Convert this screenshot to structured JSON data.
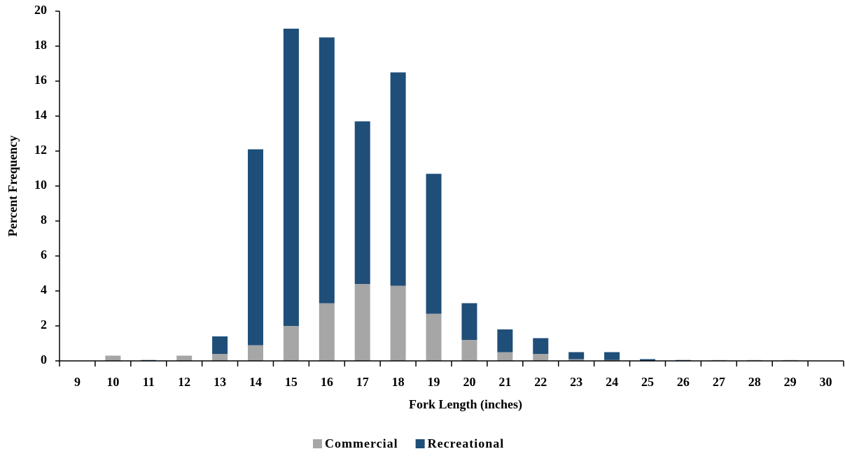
{
  "chart_data": {
    "type": "stacked_bar",
    "x_label": "Fork Length (inches)",
    "y_label": "Percent Frequency",
    "categories": [
      "9",
      "10",
      "11",
      "12",
      "13",
      "14",
      "15",
      "16",
      "17",
      "18",
      "19",
      "20",
      "21",
      "22",
      "23",
      "24",
      "25",
      "26",
      "27",
      "28",
      "29",
      "30"
    ],
    "series": [
      {
        "name": "Commercial",
        "color": "#a6a6a6",
        "values": [
          0,
          0.3,
          0,
          0.3,
          0.4,
          0.9,
          2.0,
          3.3,
          4.4,
          4.3,
          2.7,
          1.2,
          0.5,
          0.4,
          0.1,
          0.05,
          0,
          0,
          0.05,
          0.05,
          0.05,
          0
        ]
      },
      {
        "name": "Recreational",
        "color": "#1f4e79",
        "values": [
          0,
          0,
          0.05,
          0,
          1.0,
          11.2,
          17.0,
          15.2,
          9.3,
          12.2,
          8.0,
          2.1,
          1.3,
          0.9,
          0.4,
          0.45,
          0.1,
          0.05,
          0,
          0,
          0,
          0
        ]
      }
    ],
    "ylim": [
      0,
      20
    ],
    "yticks": [
      0,
      2,
      4,
      6,
      8,
      10,
      12,
      14,
      16,
      18,
      20
    ],
    "grid": false,
    "legend": "bottom"
  }
}
